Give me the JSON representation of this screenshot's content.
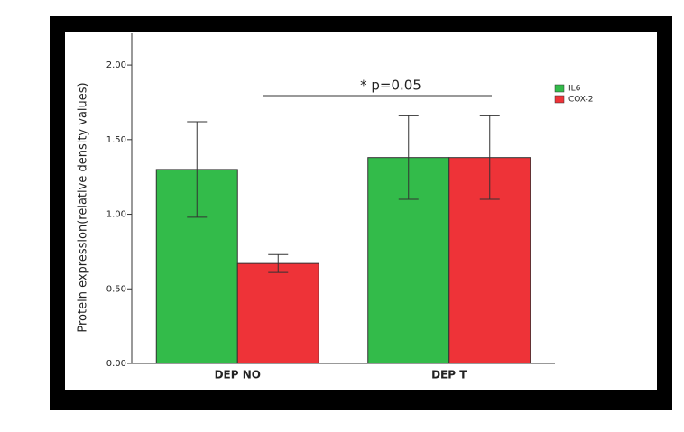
{
  "chart_data": {
    "type": "bar",
    "y_label": "Protein expression(relative density values)",
    "categories": [
      "DEP NO",
      "DEP T"
    ],
    "series": [
      {
        "name": "IL6",
        "color": "#33bb4a",
        "values": [
          1.3,
          1.38
        ],
        "errors": [
          0.32,
          0.28
        ]
      },
      {
        "name": "COX-2",
        "color": "#ee3338",
        "values": [
          0.67,
          1.38
        ],
        "errors": [
          0.06,
          0.28
        ]
      }
    ],
    "ylim": [
      0,
      2.2
    ],
    "yticks": [
      {
        "value": 0,
        "label": "0.00"
      },
      {
        "value": 0.5,
        "label": "0.50"
      },
      {
        "value": 1,
        "label": "1.00"
      },
      {
        "value": 1.5,
        "label": "1.50"
      },
      {
        "value": 2,
        "label": "2.00"
      }
    ],
    "annotation": "* p=0.05"
  }
}
